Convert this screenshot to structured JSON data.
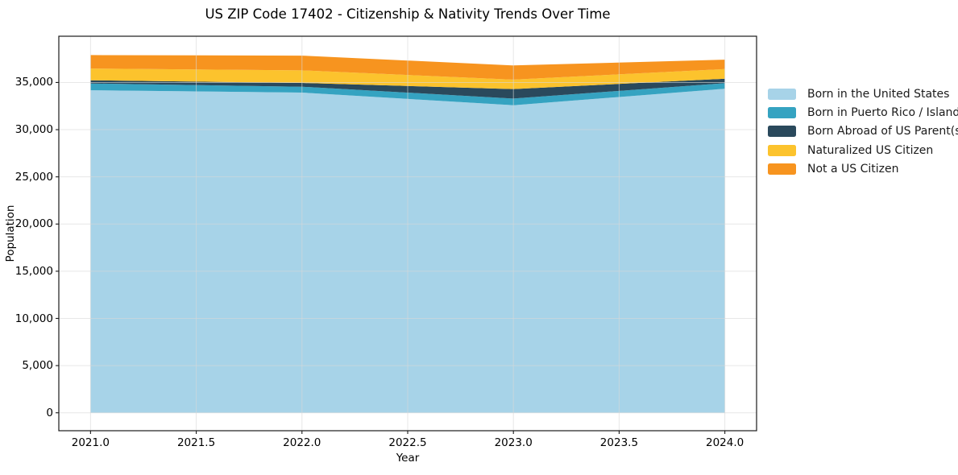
{
  "figure": {
    "title": "US ZIP Code 17402 - Citizenship & Nativity Trends Over Time",
    "xlabel": "Year",
    "ylabel": "Population"
  },
  "chart_data": {
    "type": "area",
    "stacked": true,
    "title": "US ZIP Code 17402 - Citizenship & Nativity Trends Over Time",
    "xlabel": "Year",
    "ylabel": "Population",
    "x": [
      2021,
      2022,
      2023,
      2024
    ],
    "series": [
      {
        "name": "Born in the United States",
        "color": "#a7d3e8",
        "values": [
          34180,
          33930,
          32590,
          34340
        ]
      },
      {
        "name": "Born in Puerto Rico / Islands",
        "color": "#35a3c1",
        "values": [
          710,
          620,
          710,
          590
        ]
      },
      {
        "name": "Born Abroad of US Parent(s)",
        "color": "#2a495c",
        "values": [
          340,
          400,
          1000,
          470
        ]
      },
      {
        "name": "Naturalized US Citizen",
        "color": "#fcc32d",
        "values": [
          1250,
          1330,
          1000,
          1020
        ]
      },
      {
        "name": "Not a US Citizen",
        "color": "#f7941f",
        "values": [
          1420,
          1560,
          1500,
          1000
        ]
      }
    ],
    "totals": [
      37900,
      37840,
      36800,
      37420
    ],
    "xlim": [
      2020.85,
      2024.15
    ],
    "ylim": [
      -1900,
      39900
    ],
    "x_ticks": [
      {
        "value": 2021.0,
        "label": "2021.0"
      },
      {
        "value": 2021.5,
        "label": "2021.5"
      },
      {
        "value": 2022.0,
        "label": "2022.0"
      },
      {
        "value": 2022.5,
        "label": "2022.5"
      },
      {
        "value": 2023.0,
        "label": "2023.0"
      },
      {
        "value": 2023.5,
        "label": "2023.5"
      },
      {
        "value": 2024.0,
        "label": "2024.0"
      }
    ],
    "y_ticks": [
      {
        "value": 0,
        "label": "0"
      },
      {
        "value": 5000,
        "label": "5,000"
      },
      {
        "value": 10000,
        "label": "10,000"
      },
      {
        "value": 15000,
        "label": "15,000"
      },
      {
        "value": 20000,
        "label": "20,000"
      },
      {
        "value": 25000,
        "label": "25,000"
      },
      {
        "value": 30000,
        "label": "30,000"
      },
      {
        "value": 35000,
        "label": "35,000"
      }
    ],
    "grid": true,
    "grid_color": "#d8d8d8",
    "spine_color": "#1a1a1a",
    "legend_position": "right-outside"
  }
}
